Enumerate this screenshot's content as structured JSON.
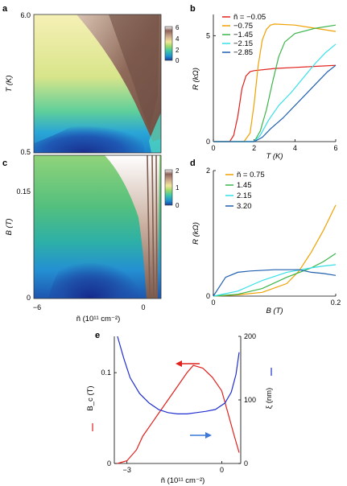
{
  "chart_data": [
    {
      "panel": "a",
      "type": "heatmap",
      "ylabel": "T (K)",
      "y_ticks": [
        "6.0",
        "0.5"
      ],
      "ylim": [
        0.5,
        6.0
      ],
      "xlim": [
        -6,
        1.2
      ],
      "colorbar": {
        "ticks": [
          "6",
          "4",
          "2",
          "0"
        ],
        "range": [
          0,
          6
        ]
      }
    },
    {
      "panel": "b",
      "type": "line",
      "xlabel": "T (K)",
      "ylabel": "R (kΩ)",
      "xlim": [
        0,
        6
      ],
      "ylim": [
        0,
        6
      ],
      "x_ticks": [
        "0",
        "2",
        "4",
        "6"
      ],
      "y_ticks": [
        "0",
        "5"
      ],
      "legend_placement": "top-left",
      "series": [
        {
          "name": "ñ = −0.05",
          "color": "#e0201c",
          "x": [
            0,
            0.8,
            1.0,
            1.2,
            1.4,
            1.6,
            1.8,
            2.0,
            3.0,
            4.0,
            5.0,
            6.0
          ],
          "y": [
            0,
            0,
            0.3,
            1.2,
            2.5,
            3.1,
            3.3,
            3.35,
            3.45,
            3.5,
            3.55,
            3.6
          ]
        },
        {
          "name": "−0.75",
          "color": "#f0a000",
          "x": [
            0,
            1.5,
            1.8,
            2.0,
            2.2,
            2.4,
            2.6,
            2.8,
            3.0,
            4.0,
            5.0,
            6.0
          ],
          "y": [
            0,
            0,
            0.4,
            1.8,
            3.6,
            4.8,
            5.3,
            5.5,
            5.55,
            5.5,
            5.35,
            5.2
          ]
        },
        {
          "name": "−1.45",
          "color": "#3ab54a",
          "x": [
            0,
            2.0,
            2.3,
            2.6,
            2.9,
            3.2,
            3.5,
            4.0,
            5.0,
            6.0
          ],
          "y": [
            0,
            0,
            0.5,
            1.5,
            2.8,
            4.0,
            4.7,
            5.1,
            5.35,
            5.5
          ]
        },
        {
          "name": "−2.15",
          "color": "#36e0e8",
          "x": [
            0,
            2.0,
            2.3,
            2.7,
            3.2,
            3.8,
            4.4,
            5.0,
            5.5,
            6.0
          ],
          "y": [
            0,
            0,
            0.3,
            1.0,
            1.7,
            2.3,
            3.0,
            3.7,
            4.2,
            4.6
          ]
        },
        {
          "name": "−2.85",
          "color": "#1f5fae",
          "x": [
            0,
            2.0,
            2.4,
            2.8,
            3.4,
            4.0,
            4.6,
            5.2,
            5.6,
            6.0
          ],
          "y": [
            0,
            0,
            0.2,
            0.6,
            1.1,
            1.7,
            2.3,
            2.9,
            3.3,
            3.6
          ]
        }
      ]
    },
    {
      "panel": "c",
      "type": "heatmap",
      "ylabel": "B (T)",
      "y_ticks": [
        "0.15",
        "0"
      ],
      "ylim": [
        0,
        0.2
      ],
      "xlim": [
        -6,
        1.2
      ],
      "xlabel": "ñ (10¹¹ cm⁻²)",
      "x_ticks": [
        "−6",
        "0"
      ],
      "colorbar": {
        "ticks": [
          "2",
          "1",
          "0"
        ],
        "range": [
          0,
          2
        ]
      }
    },
    {
      "panel": "d",
      "type": "line",
      "xlabel": "B (T)",
      "ylabel": "R (kΩ)",
      "xlim": [
        0,
        0.2
      ],
      "ylim": [
        0,
        2
      ],
      "x_ticks": [
        "0",
        "0.2"
      ],
      "y_ticks": [
        "0",
        "2"
      ],
      "legend_placement": "top-left",
      "series": [
        {
          "name": "ñ = 0.75",
          "color": "#f0a000",
          "x": [
            0,
            0.04,
            0.08,
            0.12,
            0.14,
            0.16,
            0.18,
            0.19,
            0.2
          ],
          "y": [
            0,
            0.02,
            0.06,
            0.2,
            0.4,
            0.7,
            1.05,
            1.25,
            1.45
          ]
        },
        {
          "name": "1.45",
          "color": "#3ab54a",
          "x": [
            0,
            0.04,
            0.08,
            0.12,
            0.16,
            0.18,
            0.2
          ],
          "y": [
            0,
            0.03,
            0.12,
            0.3,
            0.45,
            0.55,
            0.68
          ]
        },
        {
          "name": "2.15",
          "color": "#36e0e8",
          "x": [
            0,
            0.04,
            0.08,
            0.12,
            0.16,
            0.18,
            0.2
          ],
          "y": [
            0,
            0.08,
            0.25,
            0.38,
            0.45,
            0.48,
            0.5
          ]
        },
        {
          "name": "3.20",
          "color": "#1f5fae",
          "x": [
            0,
            0.01,
            0.02,
            0.04,
            0.06,
            0.1,
            0.14,
            0.16,
            0.18,
            0.2
          ],
          "y": [
            0,
            0.15,
            0.3,
            0.38,
            0.4,
            0.42,
            0.42,
            0.38,
            0.36,
            0.33
          ]
        }
      ]
    },
    {
      "panel": "e",
      "type": "line",
      "xlabel": "ñ (10¹¹ cm⁻²)",
      "ylabel_left": "B_c (T)",
      "ylabel_right": "ξ (nm)",
      "xlim": [
        -3.4,
        0.6
      ],
      "ylim_left": [
        0,
        0.14
      ],
      "ylim_right": [
        0,
        200
      ],
      "x_ticks": [
        "−3",
        "0"
      ],
      "y_ticks_left": [
        "0",
        "0.1"
      ],
      "y_ticks_right": [
        "0",
        "100",
        "200"
      ],
      "series": [
        {
          "name": "B_c",
          "axis": "left",
          "color": "#e0201c",
          "x": [
            -3.3,
            -3.0,
            -2.7,
            -2.5,
            -2.2,
            -2.0,
            -1.7,
            -1.4,
            -1.1,
            -0.9,
            -0.6,
            -0.3,
            0.0,
            0.2,
            0.4,
            0.55
          ],
          "y": [
            0.0,
            0.003,
            0.015,
            0.03,
            0.045,
            0.055,
            0.07,
            0.085,
            0.1,
            0.108,
            0.105,
            0.095,
            0.08,
            0.055,
            0.03,
            0.012
          ]
        },
        {
          "name": "ξ",
          "axis": "right",
          "color": "#1f2fd0",
          "x": [
            -3.3,
            -3.1,
            -2.9,
            -2.6,
            -2.3,
            -2.0,
            -1.7,
            -1.4,
            -1.1,
            -0.8,
            -0.5,
            -0.2,
            0.1,
            0.3,
            0.45,
            0.55
          ],
          "y": [
            200,
            165,
            135,
            110,
            95,
            85,
            80,
            78,
            78,
            80,
            82,
            85,
            95,
            112,
            140,
            175
          ]
        }
      ]
    }
  ],
  "labels": {
    "a": "a",
    "b": "b",
    "c": "c",
    "d": "d",
    "e": "e"
  },
  "colors": {
    "red": "#e0201c",
    "orange": "#f0a000",
    "green": "#3ab54a",
    "cyan": "#36e0e8",
    "blue": "#1f5fae",
    "navy": "#1f2fd0"
  }
}
